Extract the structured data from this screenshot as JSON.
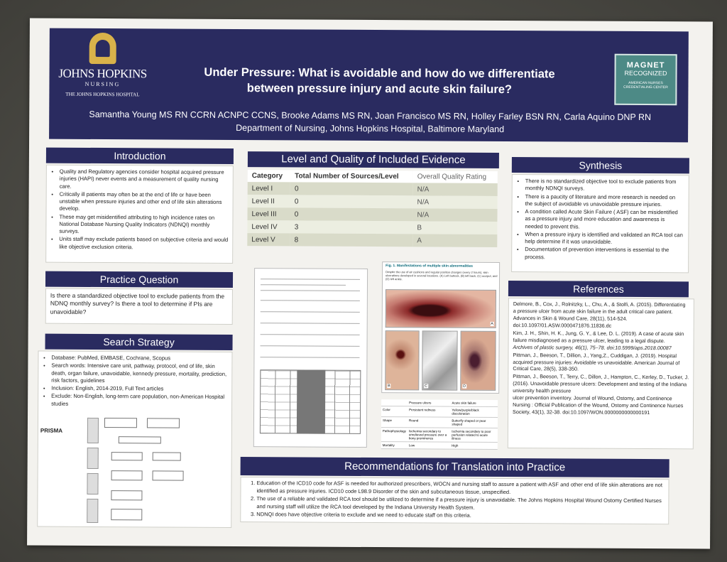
{
  "header": {
    "institution_name": "JOHNS HOPKINS",
    "institution_sub": "NURSING",
    "hospital": "THE JOHNS HOPKINS HOSPITAL",
    "title_line1": "Under Pressure: What is avoidable and how do we differentiate",
    "title_line2": "between pressure injury and acute skin failure?",
    "authors": "Samantha Young MS RN CCRN ACNPC CCNS, Brooke Adams MS RN, Joan Francisco MS RN, Holley Farley BSN RN, Carla Aquino DNP RN",
    "affiliation": "Department of Nursing, Johns Hopkins Hospital, Baltimore Maryland",
    "magnet_line1": "MAGNET",
    "magnet_line2": "RECOGNIZED",
    "magnet_line3": "AMERICAN NURSES CREDENTIALING CENTER"
  },
  "introduction": {
    "heading": "Introduction",
    "items": [
      "Quality and Regulatory agencies consider hospital acquired pressure injuries (HAPI) never events and a measurement of quality nursing care.",
      "Critically ill patients may often be at the end of life or have been unstable when pressure injuries and other end of life skin alterations develop.",
      "These may  get misidentified attributing to high incidence rates on National Database Nursing Quality Indicators (NDNQI) monthly surveys.",
      " Units staff may exclude patients based on subjective criteria and would like objective exclusion criteria."
    ]
  },
  "practice_question": {
    "heading": "Practice Question",
    "text": "Is there a standardized objective tool to exclude patients from the NDNQ monthly survey? Is there a tool to determine if PIs are unavoidable?"
  },
  "search_strategy": {
    "heading": "Search Strategy",
    "items": [
      "Database: PubMed, EMBASE, Cochrane, Scopus",
      "Search words: Intensive care unit, pathway, protocol, end of life, skin death, organ failure, unavoidable, kennedy pressure, mortality, prediction, risk factors, guidelines",
      "Inclusion: English, 2014-2019, Full Text articles",
      "Exclude: Non-English, long-term care population, non-American Hospital studies"
    ],
    "prisma_label": "PRISMA"
  },
  "evidence": {
    "heading": "Level and Quality of Included Evidence",
    "col_category": "Category",
    "col_total": "Total Number of Sources/Level",
    "col_quality": "Overall Quality Rating",
    "rows": [
      {
        "category": "Level I",
        "total": "0",
        "quality": "N/A"
      },
      {
        "category": "Level II",
        "total": "0",
        "quality": "N/A"
      },
      {
        "category": "Level III",
        "total": "0",
        "quality": "N/A"
      },
      {
        "category": "Level IV",
        "total": "3",
        "quality": "B"
      },
      {
        "category": "Level V",
        "total": "8",
        "quality": "A"
      }
    ]
  },
  "figure": {
    "title": "Fig. 1. Manifestations of multiple skin abnormalities",
    "caption": "Despite the use of air cushions and regular position changes (every 2 hours), skin ulcerations developed in several locations. (A) Left buttock, (B) left back, (C) occiput, and (D) left ankle.",
    "labels": [
      "A",
      "B",
      "C",
      "D"
    ]
  },
  "skin_table": {
    "col_pu": "Pressure ulcers",
    "col_asf": "Acute skin failure",
    "rows": [
      {
        "label": "Color",
        "pu": "Persistent redness",
        "asf": "Yellow/purple/black discoloration"
      },
      {
        "label": "Shape",
        "pu": "Round",
        "asf": "Butterfly shaped or pear shaped"
      },
      {
        "label": "Pathophysiology",
        "pu": "Ischemia secondary to unrelieved pressure over a bony prominence",
        "asf": "Ischemia secondary to poor perfusion related to acute illness"
      },
      {
        "label": "Mortality",
        "pu": "Low",
        "asf": "High"
      }
    ]
  },
  "synthesis": {
    "heading": "Synthesis",
    "items": [
      "There is no standardized objective tool to exclude patients from monthly NDNQI surveys.",
      "There is a paucity of literature and more research is needed on the subject of avoidable vs unavoidable pressure injuries.",
      "A condition called Acute Skin Failure  ( ASF) can be misidentified as a pressure injury and more education and awareness is needed to prevent this.",
      " When a pressure injury is identified and validated an RCA tool can help determine if it was unavoidable.",
      "Documentation of prevention interventions is essential to the process."
    ]
  },
  "references": {
    "heading": "References",
    "items": [
      "Delmore, B., Cox, J., Rolnitzky, L., Chu, A., & Stolfi, A. (2015). Differentiating a pressure ulcer from acute skin failure in the adult critical care patient.",
      "Advances in Skin & Wound Care, 28(11), 514-524. doi:10.1097/01.ASW.0000471876.11836.dc",
      "Kim, J. H., Shin, H. K., Jung, G. Y., & Lee, D. L. (2019). A case of acute skin failure misdiagnosed as a pressure ulcer, leading to a legal dispute.",
      "Archives of plastic surgery, 46(1), 75–78. doi:10.5999/aps.2018.00087",
      "Pittman, J., Beeson, T., Dillion, J., Yang,Z., Cuddigan, J. (2019). Hospital acquired pressure injuries: Avoidable vs unavoidable. American Journal of Critical Care, 28(5), 338-350.",
      " Pittman, J., Beeson, T., Terry, C., Dillon, J., Hampton, C., Kerley, D., Tucker, J. (2016). Unavoidable pressure ulcers: Development and testing of the Indiana university health pressure",
      "ulcer prevention inventory. Journal of Wound, Ostomy, and Continence Nursing : Official Publication of the Wound, Ostomy and Continence Nurses Society, 43(1), 32-38. doi:10.1097/WON.0000000000000191"
    ]
  },
  "recommendations": {
    "heading": "Recommendations for Translation into Practice",
    "items": [
      "Education of the ICD10 code for ASF is needed for authorized prescribers, WOCN and nursing staff to assure a patient with ASF and other end of life skin alterations are not identified as pressure injuries.  ICD10 code L98.9 Disorder of the skin and subcutaneous tissue, unspecified.",
      "The use of a reliable and validated RCA tool should be utilized to determine if a pressure injury is unavoidable. The Johns Hopkins Hospital Wound Ostomy Certified Nurses and nursing staff will utilize the RCA tool developed by the Indiana University Health System.",
      "NDNQI does have objective criteria to exclude and we need to educate staff on this criteria."
    ]
  },
  "colors": {
    "header_navy": "#2a2b60",
    "table_row": "#d9dbc9",
    "magnet_teal": "#4d8a86"
  }
}
